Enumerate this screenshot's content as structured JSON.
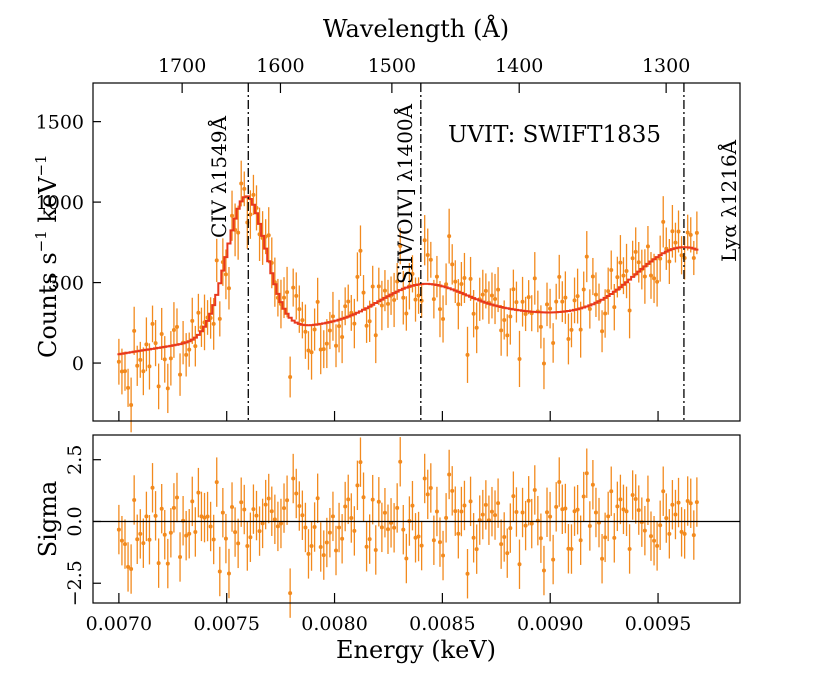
{
  "chart_data": [
    {
      "type": "scatter",
      "subtype": "spectrum-with-model",
      "panel": "top",
      "xlabel": "Energy (keV)",
      "ylabel": "Counts s^-1 keV^-1",
      "ylabel_main": "Counts s",
      "ylabel_unit": "keV",
      "ylabel_exp": "−1",
      "top_axis_label": "Wavelength (Å)",
      "xlim": [
        0.00688,
        0.00988
      ],
      "ylim": [
        -360,
        1740
      ],
      "x_ticks": [
        0.007,
        0.0075,
        0.008,
        0.0085,
        0.009,
        0.0095
      ],
      "y_ticks": [
        0,
        500,
        1000,
        1500
      ],
      "y_tick_labels": [
        "0",
        "500",
        "1000",
        "1500"
      ],
      "top_ticks": [
        {
          "label": "1700",
          "energy": 0.0072933
        },
        {
          "label": "1600",
          "energy": 0.0077492
        },
        {
          "label": "1500",
          "energy": 0.0082658
        },
        {
          "label": "1400",
          "energy": 0.0088562
        },
        {
          "label": "1300",
          "energy": 0.0095375
        }
      ],
      "source_label": "UVIT: SWIFT1835",
      "lines": [
        {
          "label": "CIV λ1549Å",
          "energy": 0.0076
        },
        {
          "label": "SiIV/OIV] λ1400Å",
          "energy": 0.0084
        },
        {
          "label": "Lyα λ1216Å",
          "energy": 0.00962
        }
      ],
      "model": {
        "name": "model",
        "color": "#e8381d",
        "components": [
          {
            "kind": "gaussian",
            "center": 0.00759,
            "amplitude": 860,
            "sigma": 9e-05
          },
          {
            "kind": "gaussian",
            "center": 0.0084,
            "amplitude": 175,
            "sigma": 0.00018
          },
          {
            "kind": "gaussian",
            "center": 0.00962,
            "amplitude": 420,
            "sigma": 0.00022
          },
          {
            "kind": "gaussian",
            "center": 0.0086,
            "amplitude": 50,
            "sigma": 0.0003
          }
        ],
        "continuum": {
          "x": [
            0.007,
            0.0074,
            0.0078,
            0.0082,
            0.0086,
            0.009,
            0.0094,
            0.0097
          ],
          "y": [
            55,
            140,
            215,
            265,
            285,
            285,
            300,
            300
          ]
        }
      },
      "data_series": {
        "name": "data",
        "color": "#f28a1e",
        "n_points": 190,
        "x_start": 0.007,
        "x_end": 0.00968,
        "typical_error": 140
      }
    },
    {
      "type": "scatter",
      "subtype": "residuals",
      "panel": "bottom",
      "xlabel": "Energy (keV)",
      "ylabel": "Sigma",
      "xlim": [
        0.00688,
        0.00988
      ],
      "ylim": [
        -3.3,
        3.5
      ],
      "y_ticks": [
        -2.5,
        0,
        2.5
      ],
      "y_tick_labels": [
        "−2.5",
        "0.0",
        "2.5"
      ],
      "x_ticks": [
        0.007,
        0.0075,
        0.008,
        0.0085,
        0.009,
        0.0095
      ],
      "x_tick_labels": [
        "0.0070",
        "0.0075",
        "0.0080",
        "0.0085",
        "0.0090",
        "0.0095"
      ],
      "zero_line": 0,
      "series": {
        "name": "residuals",
        "color": "#f28a1e",
        "n_points": 190,
        "error": 1.0
      }
    }
  ]
}
